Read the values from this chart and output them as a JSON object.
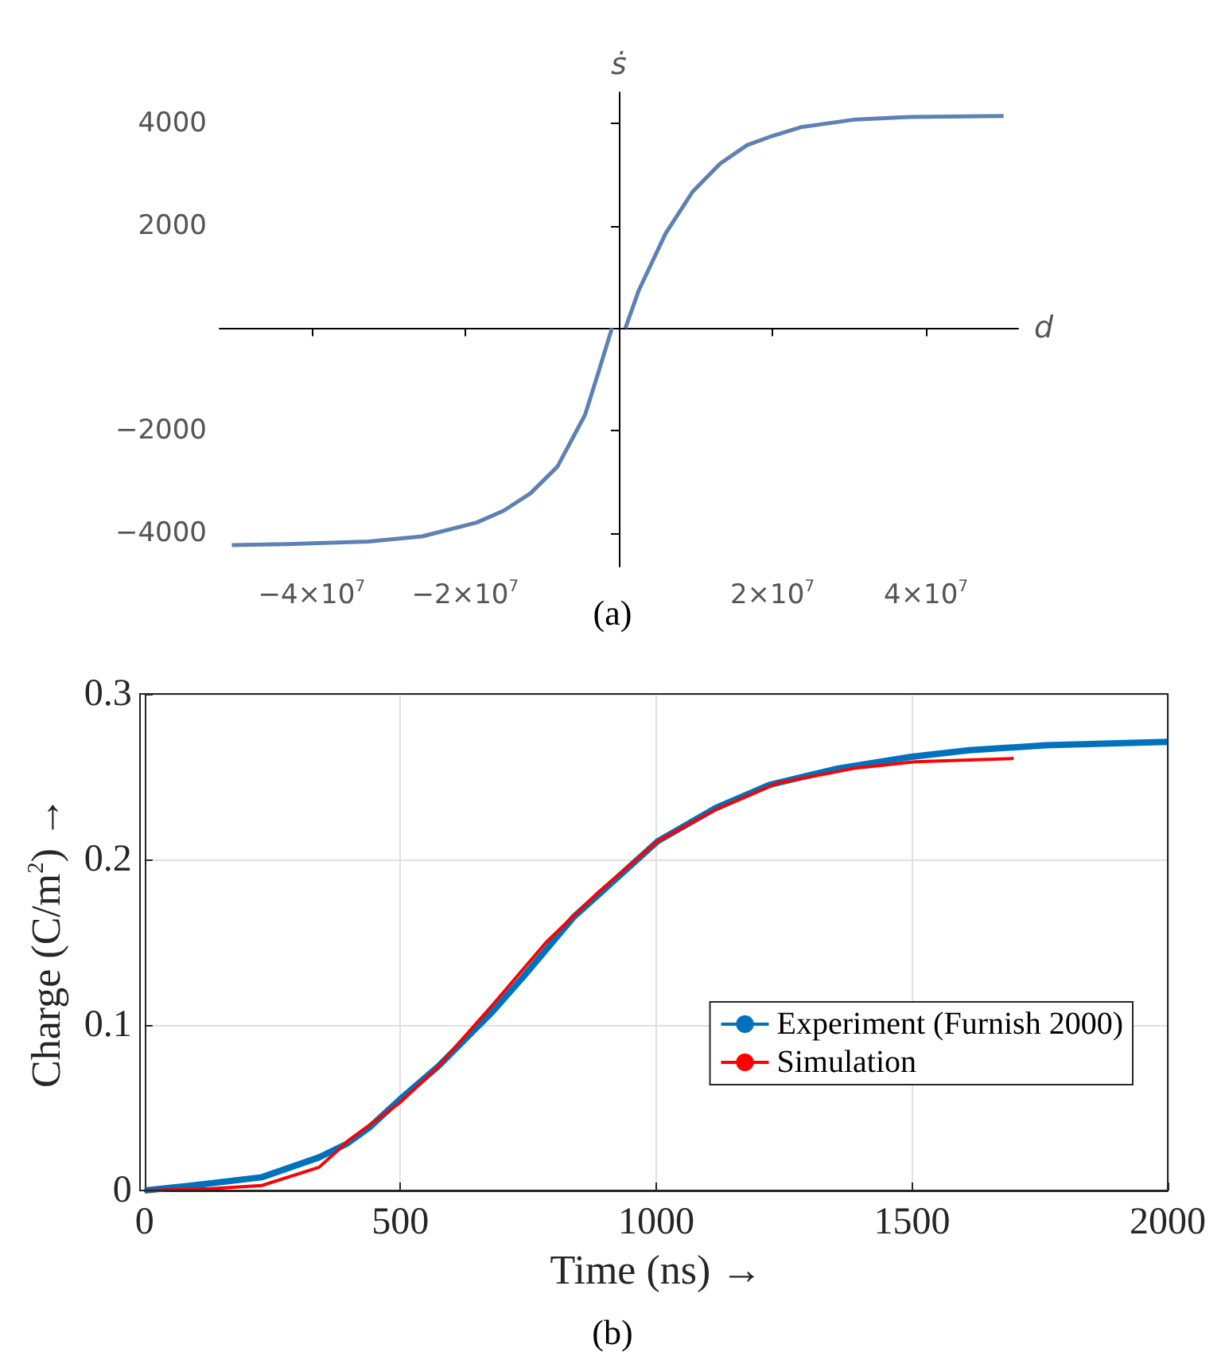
{
  "chart_data": [
    {
      "type": "line",
      "xlabel": "d",
      "ylabel": "ṡ",
      "annotations": [
        "(a)"
      ],
      "xlim": [
        -52000000,
        52000000
      ],
      "ylim": [
        -4650,
        4600
      ],
      "xticks": [
        {
          "value": -40000000,
          "label": "−4×10$^{7}$"
        },
        {
          "value": -20000000,
          "label": "−2×10$^{7}$"
        },
        {
          "value": 20000000,
          "label": "2×10$^{7}$"
        },
        {
          "value": 40000000,
          "label": "4×10$^{7}$"
        }
      ],
      "yticks": [
        {
          "value": -4000,
          "label": "−4000"
        },
        {
          "value": -2000,
          "label": "−2000"
        },
        2000,
        4000
      ],
      "marker": "none",
      "series": [
        {
          "color": "#5e81b5",
          "x": [
            -50400000,
            -43200000,
            -32600000,
            -25600000,
            -18500000,
            -15000000,
            -11500000,
            -8000000,
            -4400000,
            -2700000,
            -900000,
            0,
            850000,
            2600000,
            6100000,
            9600000,
            13200000,
            16700000,
            20000000,
            23700000,
            30800000,
            37800000,
            50100000
          ],
          "values": [
            -4230,
            -4210,
            -4160,
            -4060,
            -3790,
            -3560,
            -3220,
            -2700,
            -1690,
            -880,
            0,
            null,
            0,
            740,
            1850,
            2660,
            3210,
            3570,
            3750,
            3920,
            4070,
            4120,
            4140
          ]
        }
      ]
    },
    {
      "type": "line",
      "xlabel": "Time (ns) →",
      "ylabel": "Charge (C/m$^{2}$) →",
      "annotations": [
        "(b)"
      ],
      "xlim": [
        0,
        2000
      ],
      "ylim": [
        0,
        0.3
      ],
      "xticks": [
        0,
        500,
        1000,
        1500,
        2000
      ],
      "yticks": [
        0,
        0.1,
        0.2,
        0.3
      ],
      "grid": true,
      "legend": "right",
      "marker": "none",
      "series": [
        {
          "name": "Experiment (Furnish 2000)",
          "color": "#0072bd",
          "x": [
            0,
            93,
            229,
            341,
            394,
            439,
            499,
            574,
            635,
            680,
            740,
            838,
            935,
            1003,
            1116,
            1221,
            1356,
            1499,
            1612,
            1762,
            2000
          ],
          "values": [
            0,
            0.003,
            0.008,
            0.02,
            0.028,
            0.038,
            0.055,
            0.075,
            0.094,
            0.108,
            0.129,
            0.165,
            0.192,
            0.211,
            0.231,
            0.245,
            0.255,
            0.262,
            0.266,
            0.269,
            0.271
          ]
        },
        {
          "name": "Simulation",
          "color": "#ff0000",
          "x": [
            0,
            123,
            229,
            341,
            402,
            499,
            574,
            680,
            785,
            890,
            1003,
            1116,
            1236,
            1386,
            1506,
            1699
          ],
          "values": [
            0,
            0.001,
            0.003,
            0.014,
            0.031,
            0.053,
            0.075,
            0.112,
            0.15,
            0.181,
            0.211,
            0.23,
            0.246,
            0.255,
            0.259,
            0.261
          ]
        }
      ]
    }
  ]
}
